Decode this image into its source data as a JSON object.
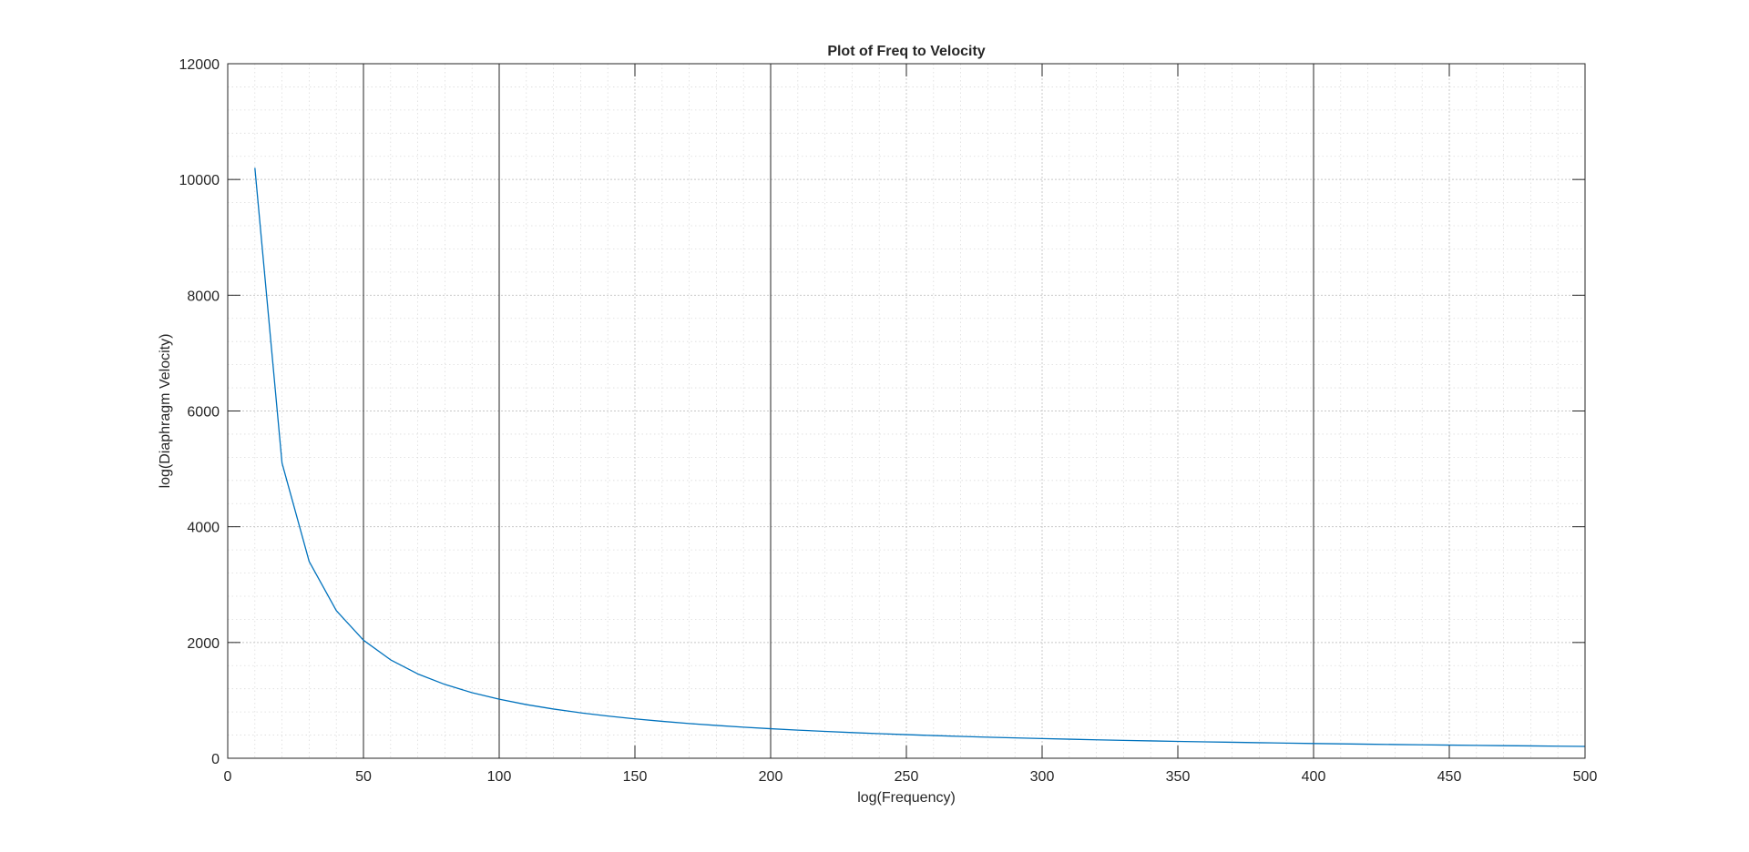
{
  "chart_data": {
    "type": "line",
    "title": "Plot of Freq to Velocity",
    "xlabel": "log(Frequency)",
    "ylabel": "log(Diaphragm Velocity)",
    "xlim": [
      0,
      500
    ],
    "ylim": [
      0,
      12000
    ],
    "xticks": [
      "0",
      "50",
      "100",
      "150",
      "200",
      "250",
      "300",
      "350",
      "400",
      "450",
      "500"
    ],
    "yticks": [
      "0",
      "2000",
      "4000",
      "6000",
      "8000",
      "10000",
      "12000"
    ],
    "grid": true,
    "minor_grid": true,
    "x_reference_lines": [
      50,
      100,
      200,
      400
    ],
    "line_color": "#0072BD",
    "series": [
      {
        "x": [
          10,
          20,
          30,
          40,
          50,
          60,
          70,
          80,
          90,
          100,
          110,
          120,
          130,
          140,
          150,
          160,
          170,
          180,
          190,
          200,
          210,
          220,
          230,
          240,
          250,
          260,
          270,
          280,
          290,
          300,
          310,
          320,
          330,
          340,
          350,
          360,
          370,
          380,
          390,
          400,
          410,
          420,
          430,
          440,
          450,
          460,
          470,
          480,
          490,
          500
        ],
        "values": [
          10200,
          5100,
          3400,
          2550,
          2040,
          1700,
          1457,
          1275,
          1133,
          1020,
          927,
          850,
          785,
          729,
          680,
          638,
          600,
          567,
          537,
          510,
          486,
          464,
          443,
          425,
          408,
          392,
          378,
          364,
          352,
          340,
          329,
          319,
          309,
          300,
          291,
          283,
          276,
          268,
          262,
          255,
          249,
          243,
          237,
          232,
          227,
          222,
          217,
          213,
          208,
          204
        ]
      }
    ]
  }
}
